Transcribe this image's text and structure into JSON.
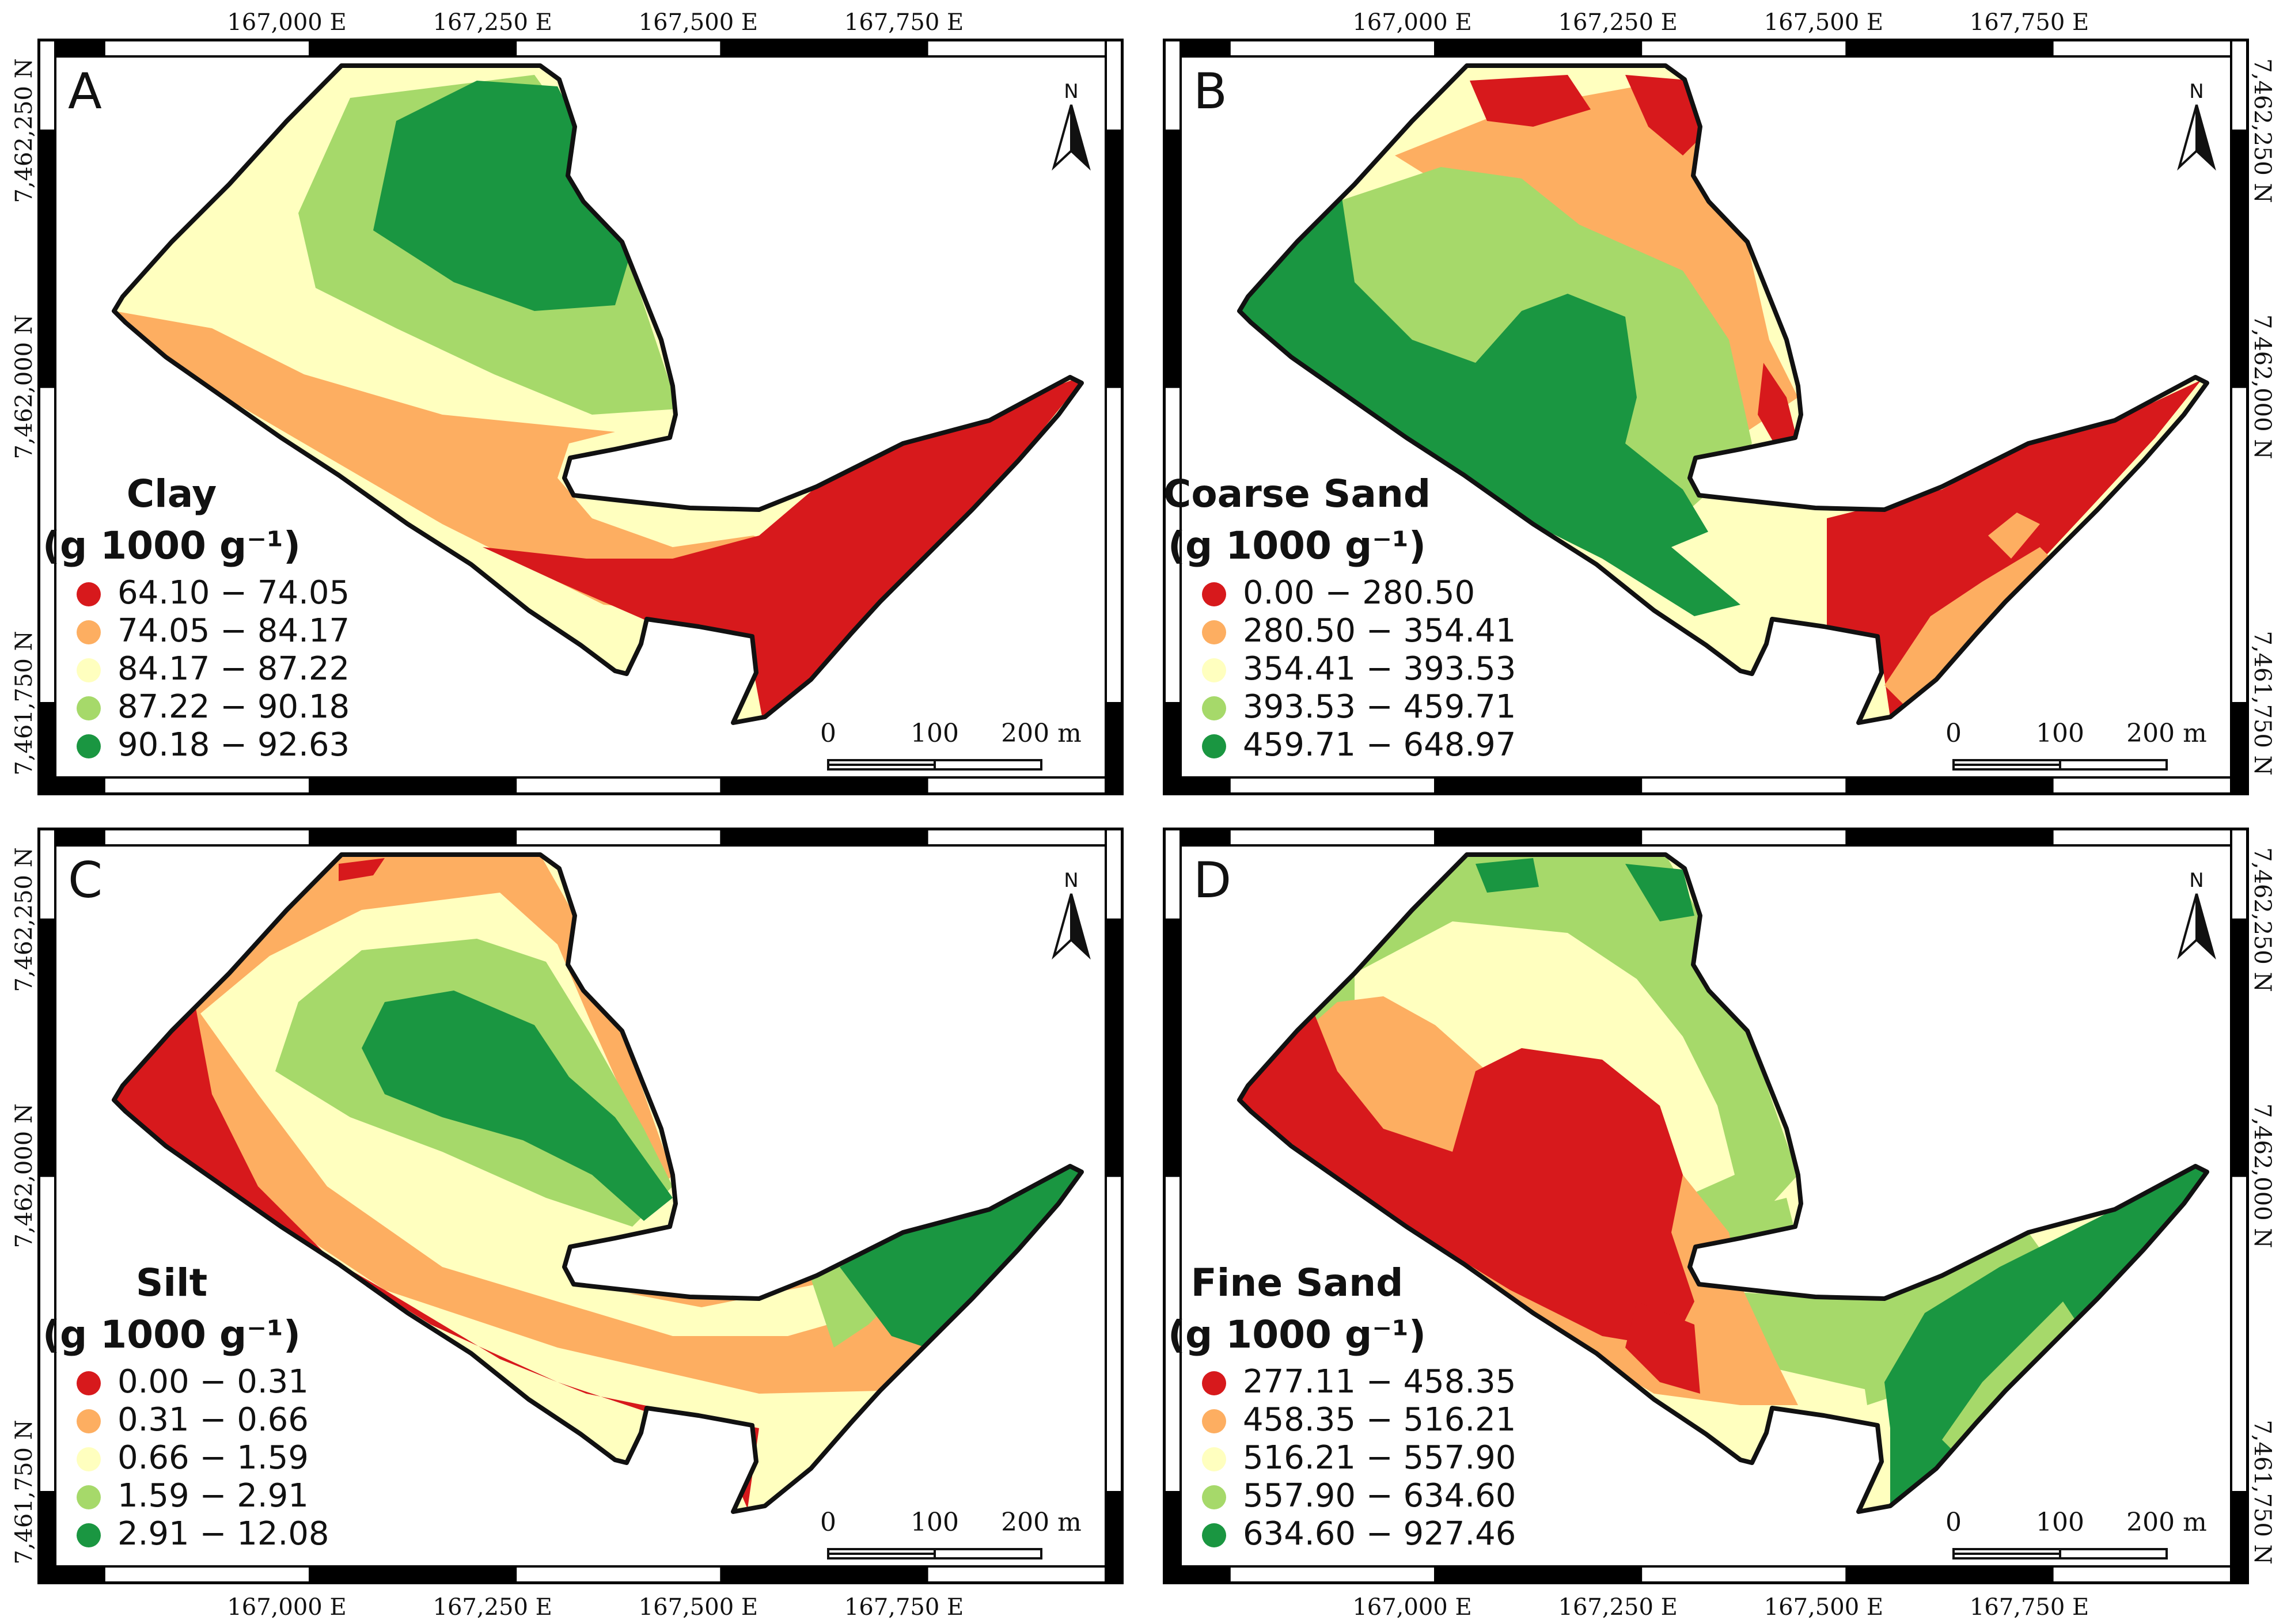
{
  "figure": {
    "colors": {
      "class1": "#d7191c",
      "class2": "#fdae61",
      "class3": "#ffffbf",
      "class4": "#a6d96a",
      "class5": "#1a9641",
      "frame": "#000000",
      "boundary": "#111111"
    },
    "north_label": "N",
    "axes": {
      "top_labels": [
        "167,000 E",
        "167,250 E",
        "167,500 E",
        "167,750 E"
      ],
      "bottom_labels": [
        "167,000 E",
        "167,250 E",
        "167,500 E",
        "167,750 E"
      ],
      "left_labels_upper": [
        "7,462,250 N",
        "7,462,000 N",
        "7,461,750 N"
      ],
      "right_labels_upper": [
        "7,462,250 N",
        "7,462,000 N",
        "7,461,750 N"
      ],
      "left_labels_lower": [
        "7,462,250 N",
        "7,462,000 N",
        "7,461,750 N"
      ],
      "right_labels_lower": [
        "7,462,250 N",
        "7,462,000 N",
        "7,461,750 N"
      ]
    },
    "scale_bar": {
      "ticks": [
        "0",
        "100",
        "200 m"
      ]
    },
    "panels": [
      {
        "letter": "A",
        "title": "Clay",
        "unit": "(g 1000 g⁻¹)",
        "legend": [
          "64.10 − 74.05",
          "74.05 − 84.17",
          "84.17 − 87.22",
          "87.22 − 90.18",
          "90.18 − 92.63"
        ]
      },
      {
        "letter": "B",
        "title": "Coarse Sand",
        "unit": "(g 1000 g⁻¹)",
        "legend": [
          "0.00 − 280.50",
          "280.50 − 354.41",
          "354.41 − 393.53",
          "393.53 − 459.71",
          "459.71 − 648.97"
        ]
      },
      {
        "letter": "C",
        "title": "Silt",
        "unit": "(g 1000 g⁻¹)",
        "legend": [
          "0.00 − 0.31",
          "0.31 − 0.66",
          "0.66 − 1.59",
          "1.59 − 2.91",
          "2.91 − 12.08"
        ]
      },
      {
        "letter": "D",
        "title": "Fine Sand",
        "unit": "(g 1000 g⁻¹)",
        "legend": [
          "277.11 − 458.35",
          "458.35 − 516.21",
          "516.21 − 557.90",
          "557.90 − 634.60",
          "634.60 − 927.46"
        ]
      }
    ]
  }
}
